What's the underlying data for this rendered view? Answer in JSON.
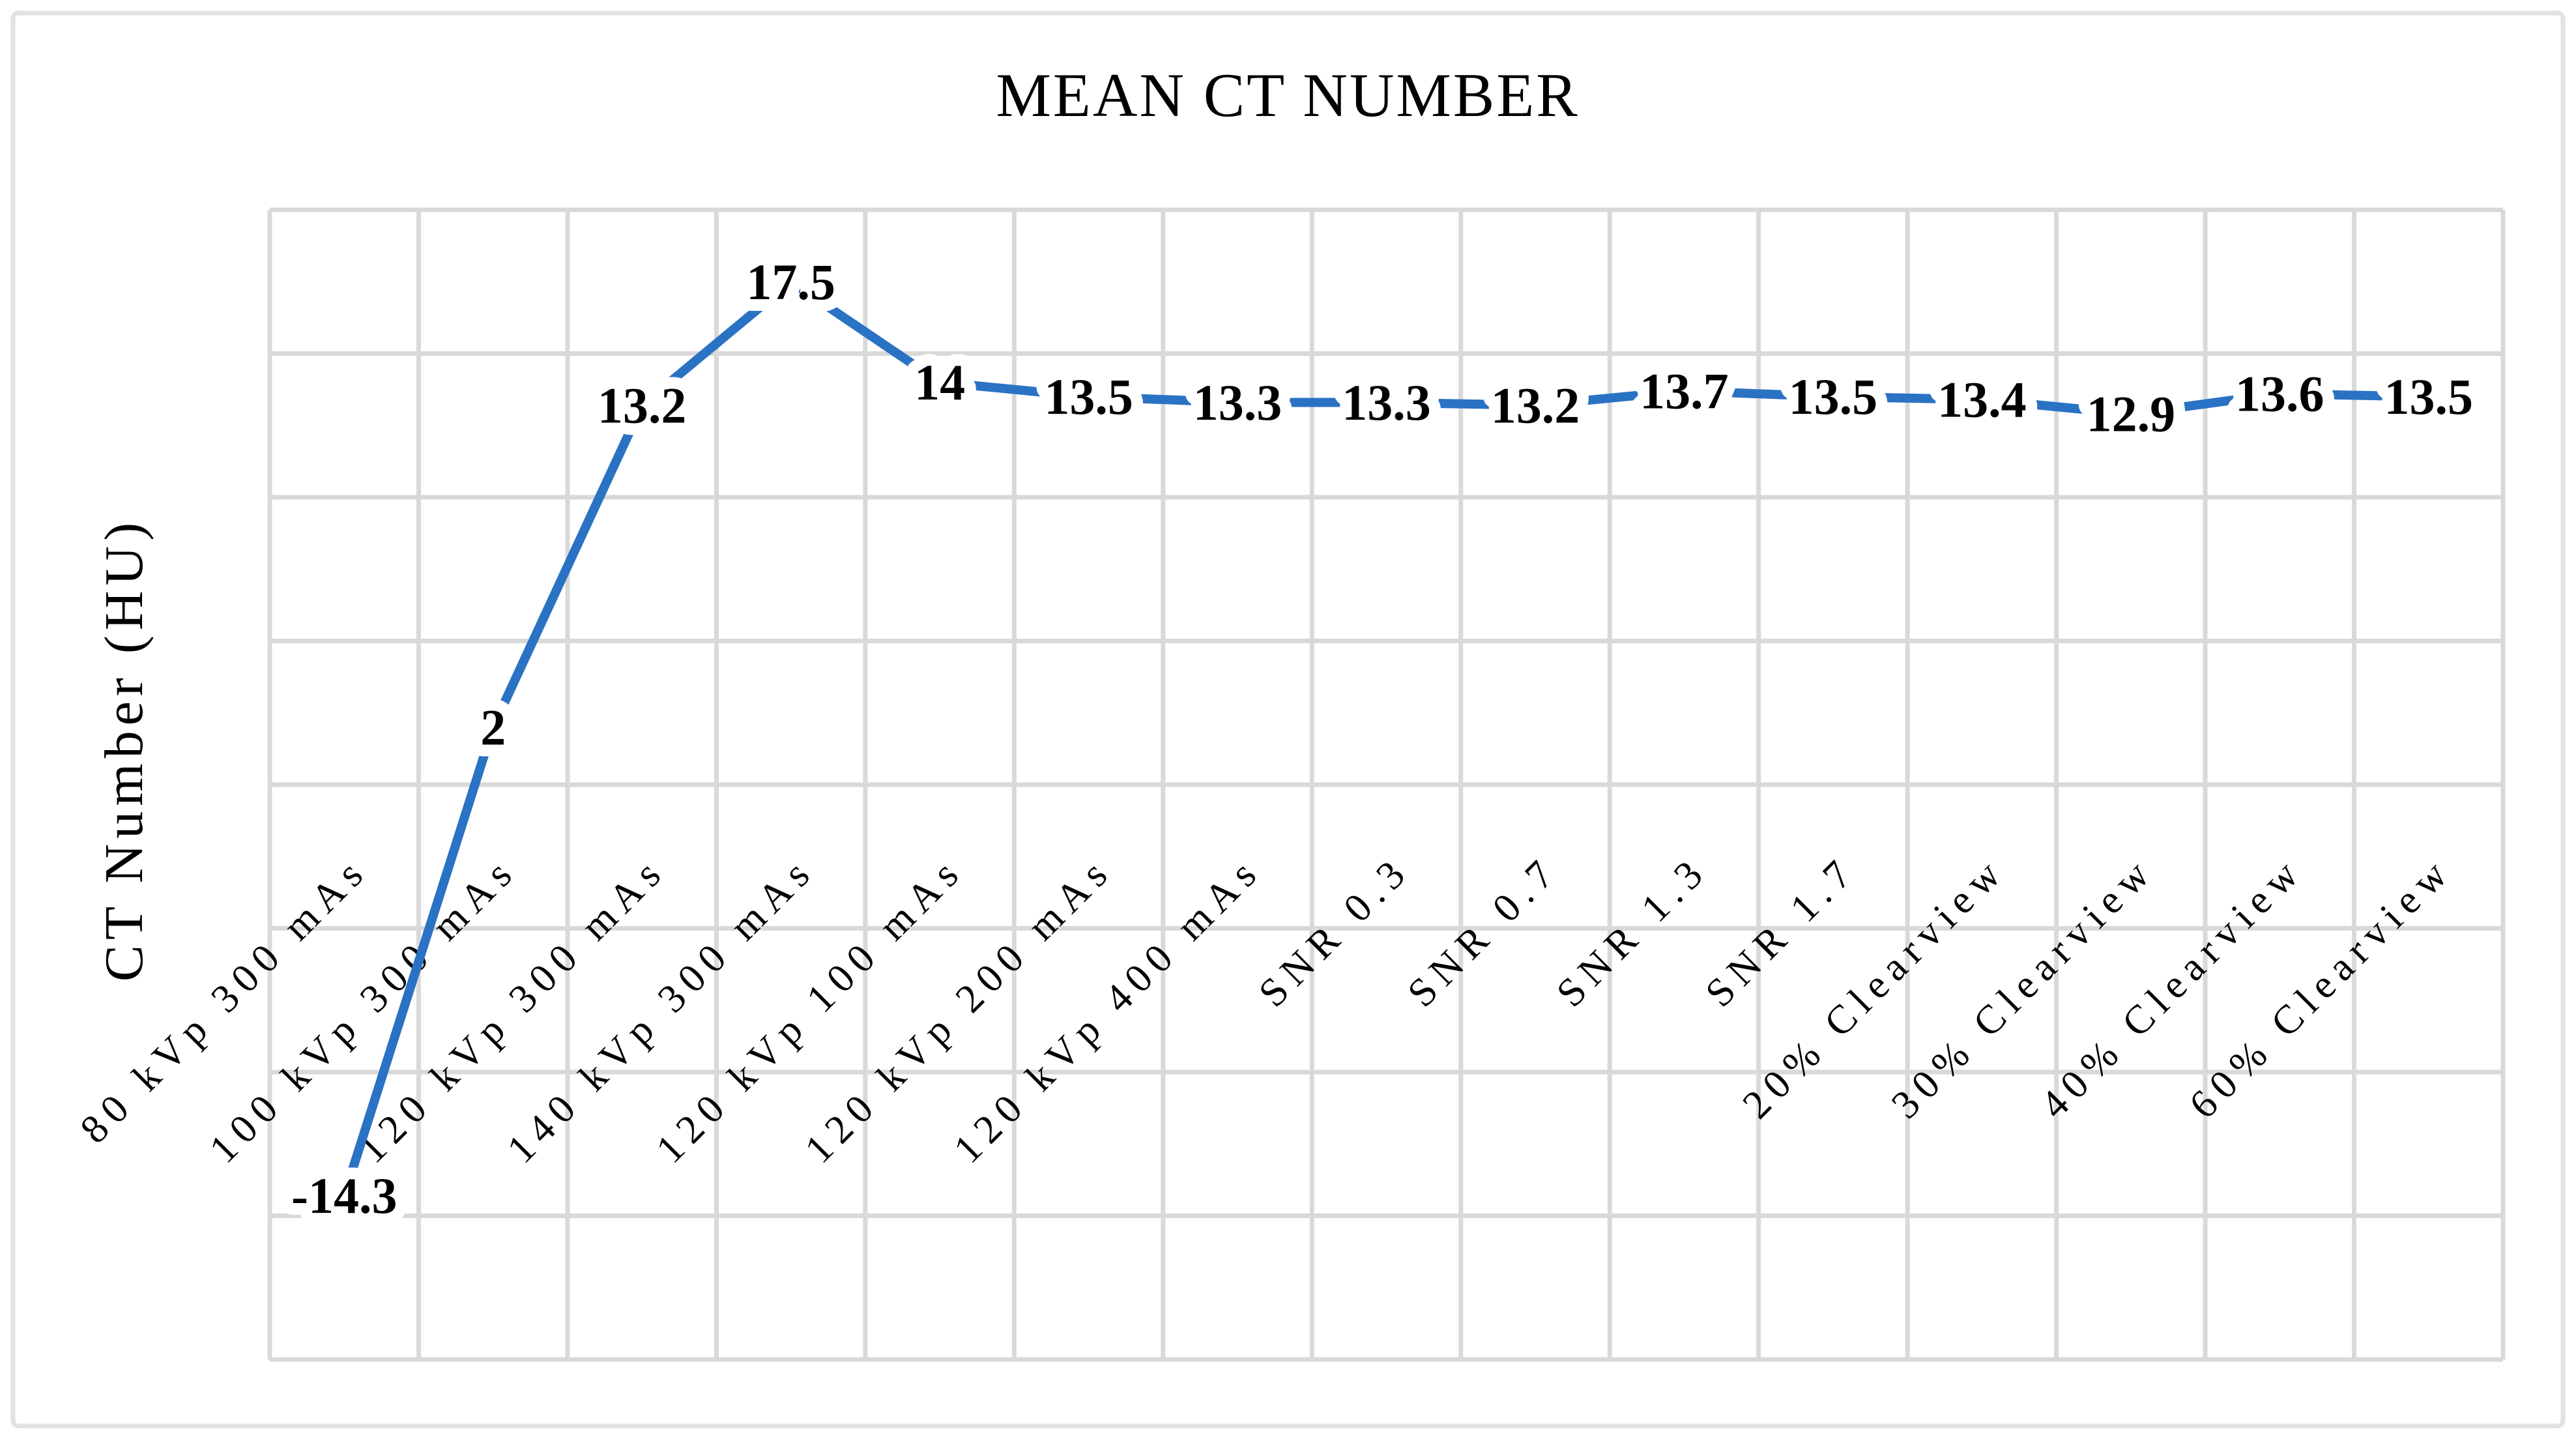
{
  "figure": {
    "background": "#ffffff",
    "border_color": "#e2e2e2"
  },
  "chart_data": {
    "type": "line",
    "title": "MEAN CT NUMBER",
    "ylabel": "CT Number (HU)",
    "xlabel": "",
    "categories": [
      "80 kVp 300 mAs",
      "100 kVp 300 mAs",
      "120 kVp 300 mAs",
      "140 kVp 300 mAs",
      "120 kVp 100 mAs",
      "120 kVp 200 mAs",
      "120 kVp 400 mAs",
      "SNR 0.3",
      "SNR 0.7",
      "SNR 1.3",
      "SNR 1.7",
      "20% Clearview",
      "30% Clearview",
      "40% Clearview",
      "60% Clearview"
    ],
    "values": [
      -14.3,
      2,
      13.2,
      17.5,
      14,
      13.5,
      13.3,
      13.3,
      13.2,
      13.7,
      13.5,
      13.4,
      12.9,
      13.6,
      13.5
    ],
    "data_labels": [
      "-14.3",
      "2",
      "13.2",
      "17.5",
      "14",
      "13.5",
      "13.3",
      "13.3",
      "13.2",
      "13.7",
      "13.5",
      "13.4",
      "12.9",
      "13.6",
      "13.5"
    ],
    "ylim": [
      -20,
      20
    ],
    "y_grid_step": 5,
    "grid": true,
    "legend": "none",
    "line_color": "#2a72c3",
    "gridline_color": "#d9d9d9",
    "label_color": "#000000",
    "label_halo_color": "#ffffff"
  }
}
